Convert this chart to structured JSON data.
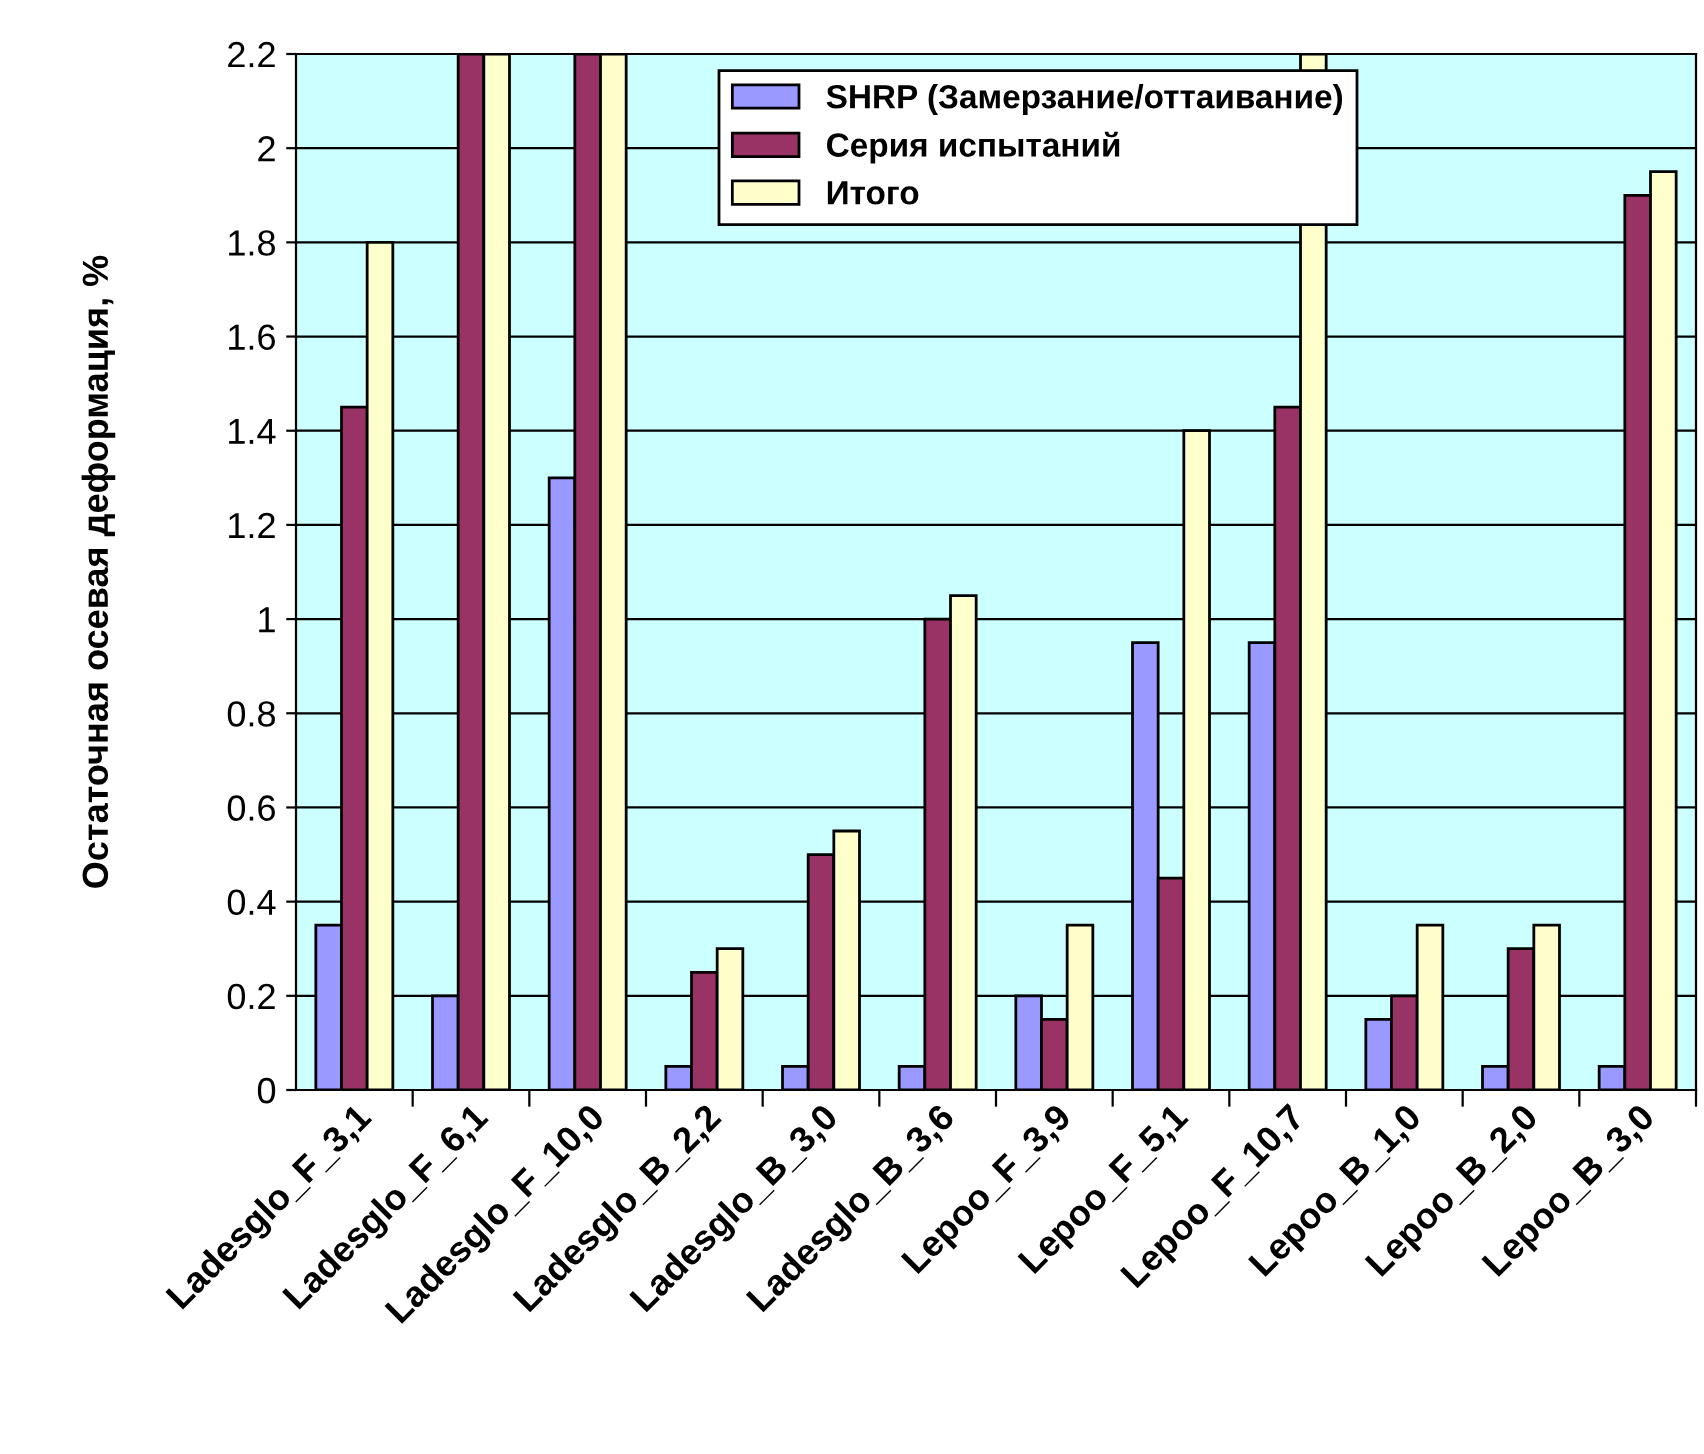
{
  "chart_data": {
    "type": "bar",
    "ylabel": "Остаточная осевая деформация, %",
    "categories": [
      "Ladesglo_F_3,1",
      "Ladesglo_F_6,1",
      "Ladesglo_F_10,0",
      "Ladesglo_B_2,2",
      "Ladesglo_B_3,0",
      "Ladesglo_B_3,6",
      "Lepoo_F_3,9",
      "Lepoo_F_5,1",
      "Lepoo_F_10,7",
      "Lepoo_B_1,0",
      "Lepoo_B_2,0",
      "Lepoo_B_3,0"
    ],
    "series": [
      {
        "name": "SHRP (Замерзание/оттаивание)",
        "color": "#9999ff",
        "values": [
          0.35,
          0.2,
          1.3,
          0.05,
          0.05,
          0.05,
          0.2,
          0.95,
          0.95,
          0.15,
          0.05,
          0.05
        ]
      },
      {
        "name": "Серия испытаний",
        "color": "#993366",
        "values": [
          1.45,
          2.2,
          2.2,
          0.25,
          0.5,
          1.0,
          0.15,
          0.45,
          1.45,
          0.2,
          0.3,
          1.9
        ]
      },
      {
        "name": "Итого",
        "color": "#ffffcc",
        "values": [
          1.8,
          2.2,
          2.2,
          0.3,
          0.55,
          1.05,
          0.35,
          1.4,
          2.2,
          0.35,
          0.35,
          1.95
        ]
      }
    ],
    "ylim": [
      0,
      2.2
    ],
    "yticks": [
      0,
      0.2,
      0.4,
      0.6,
      0.8,
      1,
      1.2,
      1.4,
      1.6,
      1.8,
      2,
      2.2
    ],
    "grid": "y",
    "legend": "top"
  }
}
